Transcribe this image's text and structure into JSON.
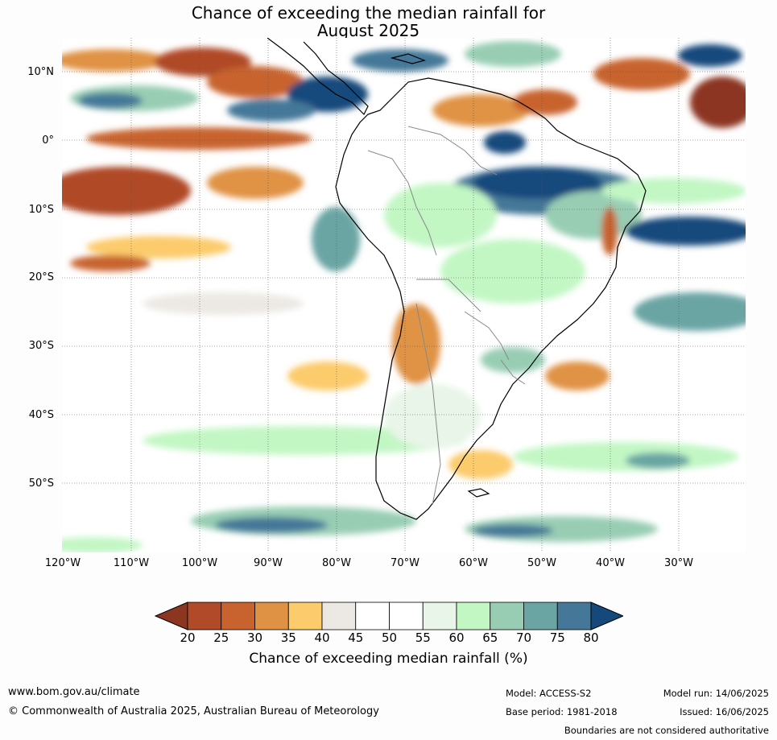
{
  "title": {
    "line1": "Chance of exceeding the median rainfall for",
    "line2": "August 2025"
  },
  "map": {
    "lat_labels": [
      "10°N",
      "0°",
      "10°S",
      "20°S",
      "30°S",
      "40°S",
      "50°S"
    ],
    "lon_labels": [
      "120°W",
      "110°W",
      "100°W",
      "90°W",
      "80°W",
      "70°W",
      "60°W",
      "50°W",
      "40°W",
      "30°W"
    ],
    "gridlines": "dotted",
    "region": "South America"
  },
  "colorbar": {
    "title": "Chance of exceeding median rainfall (%)",
    "ticks": [
      "20",
      "25",
      "30",
      "35",
      "40",
      "45",
      "50",
      "55",
      "60",
      "65",
      "70",
      "75",
      "80"
    ],
    "colors": [
      "#8c3520",
      "#b04a28",
      "#c8632f",
      "#e09244",
      "#fccb6c",
      "#ece9e4",
      "#ffffff",
      "#ffffff",
      "#e8f5e8",
      "#c2f7c4",
      "#98cdb4",
      "#6aa5a4",
      "#457898",
      "#15497c"
    ],
    "extend": "both"
  },
  "footer": {
    "website": "www.bom.gov.au/climate",
    "copyright": "© Commonwealth of Australia 2025, Australian Bureau of Meteorology",
    "model": "Model: ACCESS-S2",
    "base_period": "Base period: 1981-2018",
    "model_run": "Model run: 14/06/2025",
    "issued": "Issued: 16/06/2025",
    "disclaimer": "Boundaries are not considered authoritative"
  }
}
